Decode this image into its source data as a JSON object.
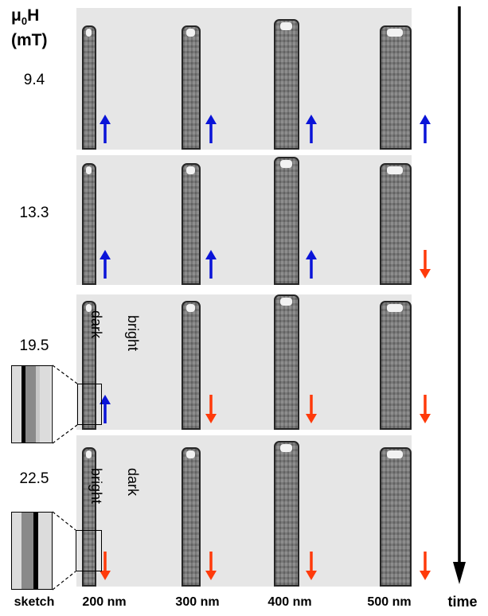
{
  "header": {
    "mu_label": "μ",
    "mu_sub": "0",
    "h_label": "H",
    "unit": "(mT)"
  },
  "field_values": [
    "9.4",
    "13.3",
    "19.5",
    "22.5"
  ],
  "wire_widths": [
    "200 nm",
    "300 nm",
    "400 nm",
    "500 nm"
  ],
  "sketch_label": "sketch",
  "time_label": "time",
  "contrast_labels": {
    "row3_left": "dark",
    "row3_right": "bright",
    "row4_left": "bright",
    "row4_right": "dark"
  },
  "magnetization": [
    [
      "up",
      "up",
      "up",
      "up"
    ],
    [
      "up",
      "up",
      "up",
      "down"
    ],
    [
      "up",
      "down",
      "down",
      "down"
    ],
    [
      "down",
      "down",
      "down",
      "down"
    ]
  ],
  "colors": {
    "up_arrow": "#0a14d8",
    "down_arrow": "#ff3a0a",
    "panel_bg": "#e6e6e6"
  }
}
